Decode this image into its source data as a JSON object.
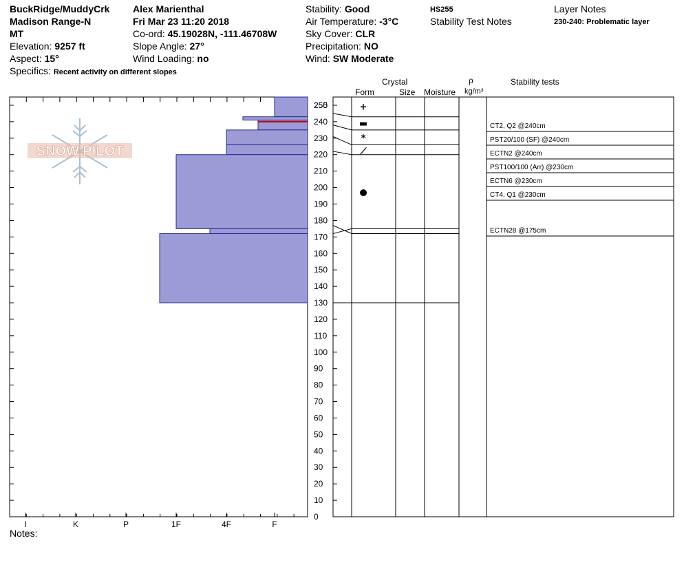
{
  "header": {
    "location1": "BuckRidge/MuddyCrk",
    "location2": "Madison Range-N",
    "state": "MT",
    "elevation_label": "Elevation: ",
    "elevation_value": "9257 ft",
    "aspect_label": "Aspect: ",
    "aspect_value": "15°",
    "specifics_label": "Specifics: ",
    "specifics_value": "Recent activity on different slopes",
    "observer": "Alex Marienthal",
    "datetime": "Fri Mar 23 11:20 2018",
    "coord_label": "Co-ord: ",
    "coord_value": "45.19028N, -111.46708W",
    "slope_label": "Slope Angle: ",
    "slope_value": "27°",
    "wind_loading_label": "Wind Loading: ",
    "wind_loading_value": "no",
    "stability_label": "Stability: ",
    "stability_value": "Good",
    "air_temp_label": "Air Temperature: ",
    "air_temp_value": "-3°C",
    "sky_label": "Sky Cover: ",
    "sky_value": "CLR",
    "precip_label": "Precipitation: ",
    "precip_value": "NO",
    "wind_label": "Wind: ",
    "wind_value": "SW Moderate",
    "hs": "HS255",
    "stability_notes_title": "Stability Test Notes",
    "layer_notes_title": "Layer Notes",
    "layer_note": "230-240: Problematic layer"
  },
  "columns": {
    "crystal": "Crystal",
    "form": "Form",
    "size": "Size",
    "moisture": "Moisture",
    "rho": "ρ",
    "density_unit": "kg/m³",
    "stability_tests": "Stability tests"
  },
  "logo_text": "SNOW PILOT",
  "notes_label": "Notes:",
  "chart_data": {
    "type": "bar",
    "title": "",
    "y_range": [
      0,
      255
    ],
    "y_ticks": [
      255,
      250,
      240,
      230,
      220,
      210,
      200,
      190,
      180,
      170,
      160,
      150,
      140,
      130,
      120,
      110,
      100,
      90,
      80,
      70,
      60,
      50,
      40,
      30,
      20,
      10,
      0
    ],
    "hardness_labels": [
      "I",
      "K",
      "P",
      "1F",
      "4F",
      "F"
    ],
    "layers": [
      {
        "top": 255,
        "bottom": 243,
        "hardness": "F"
      },
      {
        "top": 243,
        "bottom": 241,
        "hardness": "4F+"
      },
      {
        "top": 241,
        "bottom": 235,
        "hardness": "F-"
      },
      {
        "top": 235,
        "bottom": 226,
        "hardness": "4F"
      },
      {
        "top": 226,
        "bottom": 220,
        "hardness": "4F"
      },
      {
        "top": 220,
        "bottom": 175,
        "hardness": "1F"
      },
      {
        "top": 175,
        "bottom": 172,
        "hardness": "4F-"
      },
      {
        "top": 172,
        "bottom": 130,
        "hardness": "1F-"
      }
    ],
    "critical_layer": 240,
    "layer_boundaries": [
      255,
      243,
      235,
      226,
      220,
      175,
      172,
      130
    ],
    "grain_forms": [
      {
        "depth": 249,
        "symbol": "+"
      },
      {
        "depth": 239,
        "symbol": "▬"
      },
      {
        "depth": 230,
        "symbol": "*"
      },
      {
        "depth": 222,
        "symbol": "⟋"
      },
      {
        "depth": 197,
        "symbol": "●"
      }
    ],
    "stability_tests": [
      "CT2, Q2 @240cm",
      "PST20/100 (SF) @240cm",
      "ECTN2 @240cm",
      "PST100/100 (Arr) @230cm",
      "ECTN6 @230cm",
      "CT4, Q1 @230cm",
      "ECTN28 @175cm"
    ],
    "colors": {
      "fill": "#9b9bd7",
      "stroke": "#2a2a8c",
      "critical": "#cc0000",
      "logo_red": "#e8b8a8",
      "logo_blue": "#a9bfcf"
    }
  }
}
